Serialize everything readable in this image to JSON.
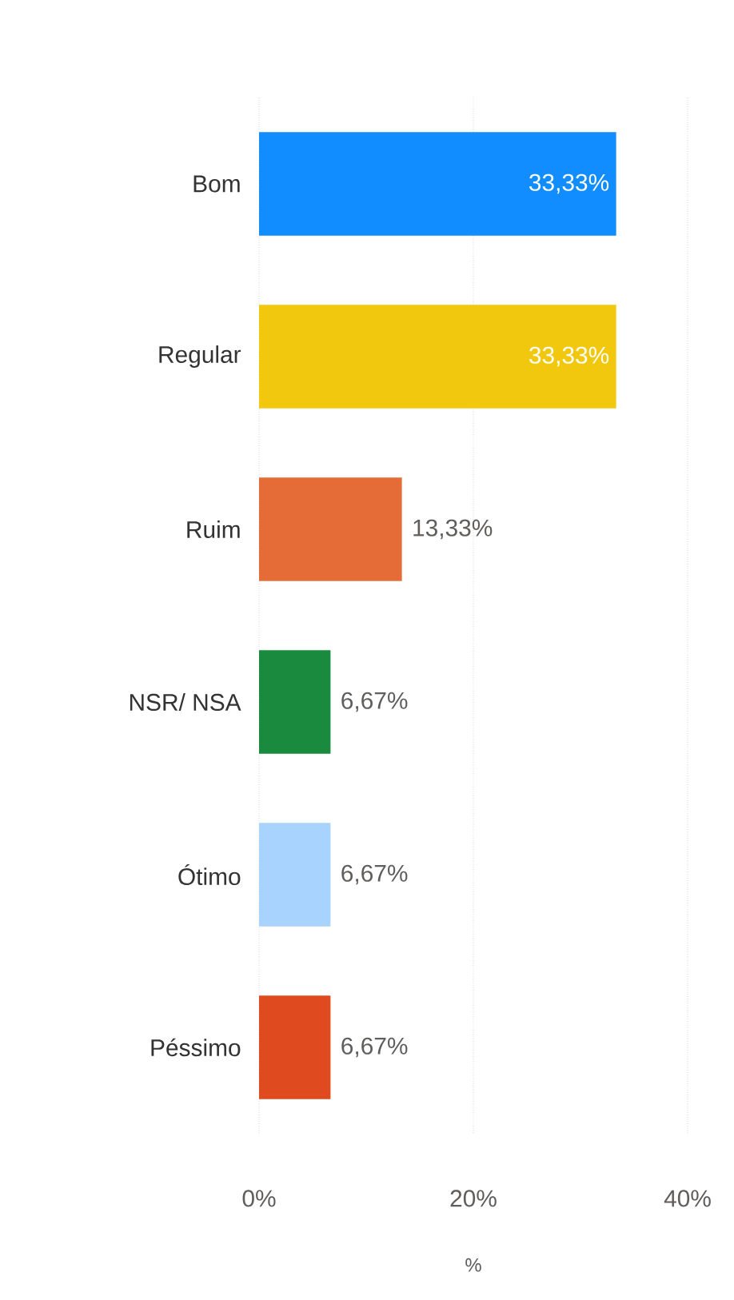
{
  "chart_data": {
    "type": "bar",
    "orientation": "horizontal",
    "xlabel": "%",
    "categories": [
      "Bom",
      "Regular",
      "Ruim",
      "NSR/ NSA",
      "Ótimo",
      "Péssimo"
    ],
    "values": [
      33.33,
      33.33,
      13.33,
      6.67,
      6.67,
      6.67
    ],
    "colors": [
      "#118dff",
      "#f2c80f",
      "#e66c37",
      "#1a8b3e",
      "#a8d3ff",
      "#e04a1f"
    ],
    "value_labels": [
      "33,33%",
      "33,33%",
      "13,33%",
      "6,67%",
      "6,67%",
      "6,67%"
    ],
    "xlim": [
      0,
      40
    ],
    "xticks": [
      {
        "value": 0,
        "label": "0%"
      },
      {
        "value": 20,
        "label": "20%"
      },
      {
        "value": 40,
        "label": "40%"
      }
    ],
    "grid": "x"
  }
}
